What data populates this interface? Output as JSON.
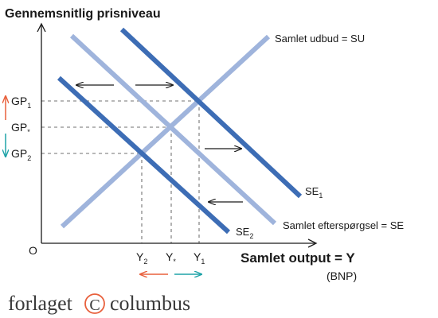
{
  "diagram": {
    "y_axis_title": "Gennemsnitlig prisniveau",
    "x_axis_title": "Samlet output = Y",
    "x_axis_subtitle": "(BNP)",
    "origin_label": "O",
    "curves": {
      "su": {
        "label": "Samlet udbud = SU",
        "color": "#9fb4dc"
      },
      "se": {
        "label": "Samlet efterspørgsel = SE",
        "color": "#9fb4dc"
      },
      "se1": {
        "label_main": "SE",
        "label_sub": "1",
        "color": "#3d6db5"
      },
      "se2": {
        "label_main": "SE",
        "label_sub": "2",
        "color": "#3d6db5"
      }
    },
    "price_levels": {
      "gp1": {
        "main": "GP",
        "sub": "1"
      },
      "gpstar": {
        "main": "GP",
        "sub": "*"
      },
      "gp2": {
        "main": "GP",
        "sub": "2"
      }
    },
    "outputs": {
      "y2": {
        "main": "Y",
        "sub": "2"
      },
      "ystar": {
        "main": "Y",
        "sub": "*"
      },
      "y1": {
        "main": "Y",
        "sub": "1"
      }
    },
    "colors": {
      "up_arrow": "#e8603c",
      "down_arrow": "#1fa3a8",
      "axis": "#1a1a1a",
      "dashed": "#a0a0a0"
    }
  },
  "logo": {
    "left_text": "forlaget",
    "circle_letter": "C",
    "right_text": "columbus",
    "color": "#e8603c"
  }
}
